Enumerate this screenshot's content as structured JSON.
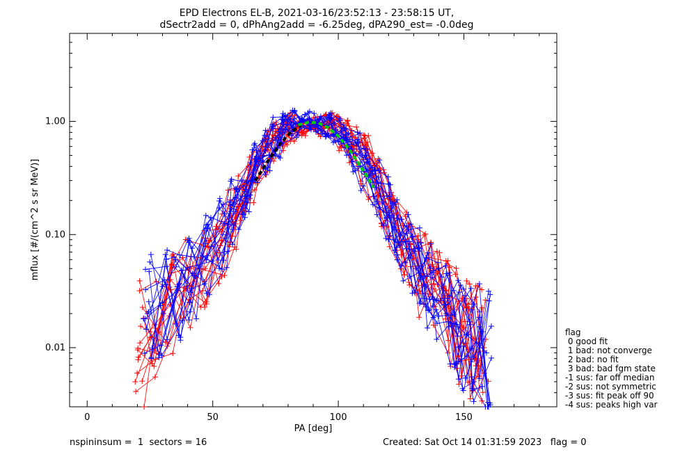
{
  "chart_data": {
    "type": "line",
    "title": "EPD Electrons EL-B, 2021-03-16/23:52:13 - 23:58:15 UT,",
    "subtitle": "dSectr2add = 0, dPhAng2add = -6.25deg, dPA290_est=  -0.0deg",
    "xlabel": "PA [deg]",
    "ylabel": "mflux [#/(cm^2 s sr MeV)]",
    "xlim": [
      -7,
      187
    ],
    "ylim": [
      0.003,
      6.0
    ],
    "yscale": "log",
    "xticks": [
      {
        "v": 0,
        "label": "0"
      },
      {
        "v": 50,
        "label": "50"
      },
      {
        "v": 100,
        "label": "100"
      },
      {
        "v": 150,
        "label": "150"
      }
    ],
    "yticks": [
      {
        "v": 0.01,
        "label": "0.01"
      },
      {
        "v": 0.1,
        "label": "0.10"
      },
      {
        "v": 1.0,
        "label": "1.00"
      }
    ],
    "series": [
      {
        "color": "#ff0000",
        "marker": "plus",
        "linewidth": 1,
        "x": [
          21,
          27,
          33,
          40,
          47,
          53,
          58,
          62,
          66,
          70,
          74,
          78,
          82,
          86,
          90,
          94,
          98,
          102,
          106,
          110,
          114,
          118,
          122,
          126,
          130,
          134,
          138,
          142,
          146,
          150,
          154,
          158
        ],
        "y": [
          0.011,
          0.016,
          0.024,
          0.035,
          0.05,
          0.08,
          0.13,
          0.2,
          0.32,
          0.5,
          0.68,
          0.8,
          0.88,
          0.92,
          0.95,
          0.93,
          0.88,
          0.76,
          0.62,
          0.46,
          0.33,
          0.22,
          0.14,
          0.09,
          0.062,
          0.045,
          0.033,
          0.025,
          0.019,
          0.015,
          0.012,
          0.01
        ]
      },
      {
        "color": "#0000ff",
        "marker": "plus",
        "linewidth": 1,
        "x": [
          24,
          30,
          36,
          42,
          48,
          54,
          59,
          63,
          67,
          71,
          75,
          79,
          83,
          87,
          91,
          95,
          99,
          103,
          107,
          111,
          115,
          119,
          123,
          127,
          131,
          135,
          139,
          143,
          147,
          151,
          155,
          159
        ],
        "y": [
          0.02,
          0.025,
          0.032,
          0.045,
          0.065,
          0.1,
          0.16,
          0.25,
          0.38,
          0.55,
          0.72,
          0.85,
          0.95,
          1.0,
          0.98,
          0.92,
          0.82,
          0.68,
          0.52,
          0.38,
          0.26,
          0.17,
          0.11,
          0.075,
          0.05,
          0.035,
          0.026,
          0.02,
          0.016,
          0.013,
          0.011,
          0.009
        ]
      }
    ],
    "fits": [
      {
        "color": "#000000",
        "style": "dashed",
        "x": [
          67,
          72,
          77,
          81,
          85
        ],
        "y": [
          0.3,
          0.45,
          0.64,
          0.8,
          0.92
        ]
      },
      {
        "color": "#00cc00",
        "style": "dashed",
        "x": [
          84,
          88,
          92,
          96,
          100,
          104,
          108,
          112,
          114
        ],
        "y": [
          0.93,
          0.98,
          0.97,
          0.88,
          0.74,
          0.58,
          0.43,
          0.31,
          0.26
        ]
      }
    ],
    "legend": {
      "position": "right-bottom",
      "title": "flag",
      "entries": [
        " 0 good fit",
        " 1 bad: not converge",
        " 2 bad: no fit",
        " 3 bad: bad fgm state",
        "-1 sus: far off median",
        "-2 sus: not symmetric",
        "-3 sus: fit peak off 90",
        "-4 sus: peaks high var"
      ]
    }
  },
  "footer": {
    "left": "nspininsum =  1  sectors = 16",
    "right": "Created: Sat Oct 14 01:31:59 2023   flag = 0"
  }
}
